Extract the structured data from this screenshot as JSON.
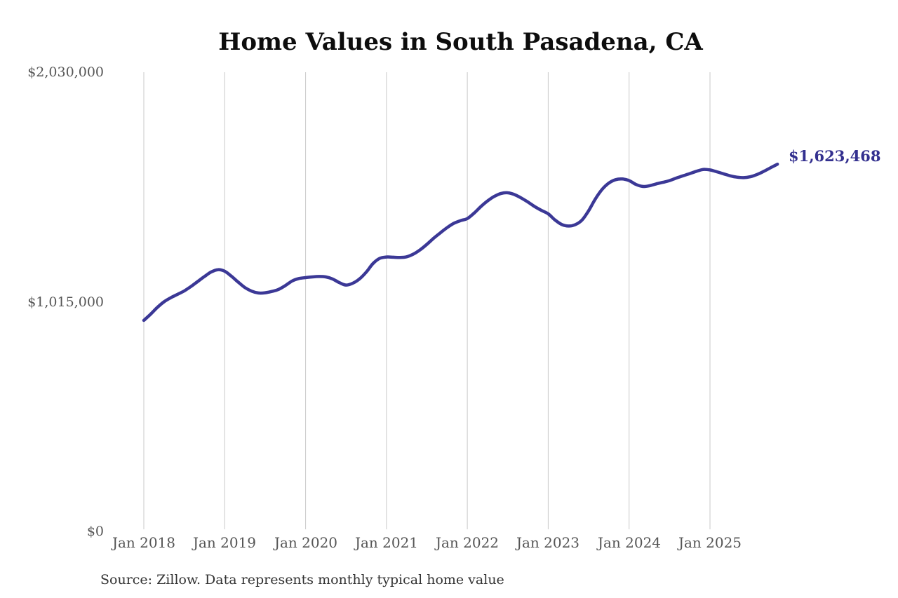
{
  "page": {
    "background": "#ffffff"
  },
  "header": {
    "title": "Home Values in South Pasadena, CA"
  },
  "footer": {
    "source_note": "Source: Zillow. Data represents monthly typical home value"
  },
  "annotation": {
    "latest_value_label": "$1,623,468"
  },
  "colors": {
    "background": "#ffffff",
    "line": "#3b3896",
    "annotation": "#33308f",
    "grid": "#c9c9c9",
    "axis_text": "#555555",
    "title_text": "#0d0d0d",
    "source_text": "#333333"
  },
  "chart_data": {
    "type": "line",
    "title": "Home Values in South Pasadena, CA",
    "xlabel": "",
    "ylabel": "",
    "x_interval": "month",
    "start_month": "2018-01",
    "end_month": "2025-11",
    "x_tick_labels": [
      "Jan 2018",
      "Jan 2019",
      "Jan 2020",
      "Jan 2021",
      "Jan 2022",
      "Jan 2023",
      "Jan 2024",
      "Jan 2025"
    ],
    "x_tick_month_indices": [
      0,
      12,
      24,
      36,
      48,
      60,
      72,
      84
    ],
    "y_ticks": [
      {
        "label": "$0",
        "value": 0
      },
      {
        "label": "$1,015,000",
        "value": 1015000
      },
      {
        "label": "$2,030,000",
        "value": 2030000
      }
    ],
    "ylim": [
      0,
      2030000
    ],
    "grid": "vertical-only",
    "legend": "none",
    "end_value": 1623468,
    "series": [
      {
        "name": "Monthly typical home value",
        "values": [
          933000,
          960000,
          990000,
          1015000,
          1033000,
          1048000,
          1063000,
          1083000,
          1105000,
          1127000,
          1147000,
          1157000,
          1150000,
          1128000,
          1102000,
          1078000,
          1062000,
          1054000,
          1055000,
          1061000,
          1070000,
          1087000,
          1107000,
          1118000,
          1122000,
          1125000,
          1127000,
          1125000,
          1116000,
          1100000,
          1089000,
          1097000,
          1116000,
          1146000,
          1184000,
          1207000,
          1213000,
          1212000,
          1211000,
          1214000,
          1226000,
          1245000,
          1269000,
          1296000,
          1320000,
          1343000,
          1362000,
          1374000,
          1383000,
          1407000,
          1436000,
          1461000,
          1481000,
          1494000,
          1497000,
          1489000,
          1474000,
          1456000,
          1436000,
          1419000,
          1404000,
          1377000,
          1357000,
          1350000,
          1356000,
          1376000,
          1418000,
          1470000,
          1512000,
          1540000,
          1555000,
          1558000,
          1551000,
          1534000,
          1525000,
          1528000,
          1536000,
          1543000,
          1551000,
          1562000,
          1572000,
          1582000,
          1592000,
          1600000,
          1598000,
          1590000,
          1581000,
          1572000,
          1566000,
          1564000,
          1568000,
          1578000,
          1592000,
          1608000,
          1623468
        ]
      }
    ]
  }
}
